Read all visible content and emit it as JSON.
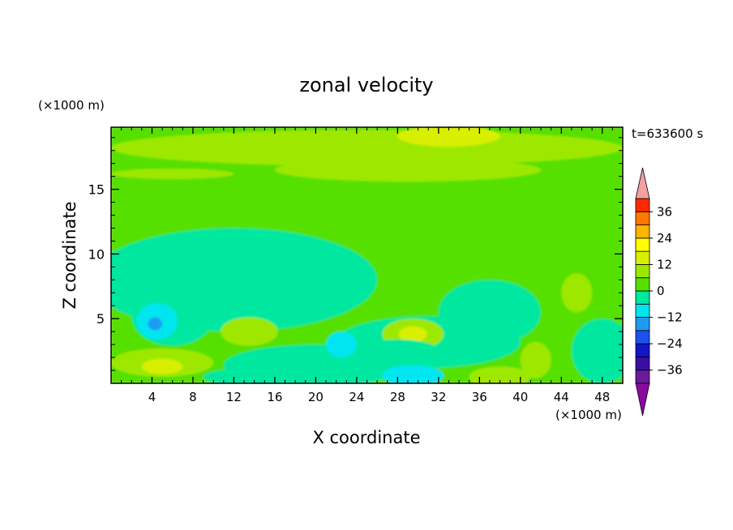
{
  "chart_data": {
    "type": "heatmap",
    "title": "zonal velocity",
    "time_label": "t=633600 s",
    "xlabel": "X coordinate",
    "ylabel": "Z coordinate",
    "x_unit": "(×1000 m)",
    "y_unit": "(×1000 m)",
    "xlim": [
      0,
      50
    ],
    "ylim": [
      0,
      19.8
    ],
    "xticks": [
      4,
      8,
      12,
      16,
      20,
      24,
      28,
      32,
      36,
      40,
      44,
      48
    ],
    "yticks": [
      5,
      10,
      15
    ],
    "colorbar": {
      "levels": [
        -42,
        -36,
        -30,
        -24,
        -18,
        -12,
        -6,
        0,
        6,
        12,
        18,
        24,
        30,
        36,
        42
      ],
      "tick_labels": [
        "36",
        "24",
        "12",
        "0",
        "−12",
        "−24",
        "−36"
      ],
      "tick_values": [
        36,
        24,
        12,
        0,
        -12,
        -24,
        -36
      ],
      "colors": [
        "#6a1b9a",
        "#3a0ea0",
        "#1414c8",
        "#1e50f0",
        "#1e9bf0",
        "#00e6f0",
        "#00e8a0",
        "#55e000",
        "#9ee800",
        "#d8f000",
        "#ffff00",
        "#ffb400",
        "#ff7800",
        "#ff2a00",
        "#dd0000"
      ],
      "under_color": "#8a0aa0",
      "over_color": "#f4a0a0"
    },
    "field_background": 2,
    "field_blobs": [
      {
        "x": 25,
        "y": 18.2,
        "rx": 25,
        "ry": 1.4,
        "v": 8
      },
      {
        "x": 33,
        "y": 19.1,
        "rx": 5,
        "ry": 0.8,
        "v": 14
      },
      {
        "x": 29,
        "y": 16.5,
        "rx": 13,
        "ry": 0.9,
        "v": 8
      },
      {
        "x": 6,
        "y": 16.2,
        "rx": 6,
        "ry": 0.4,
        "v": 8
      },
      {
        "x": 12,
        "y": 8,
        "rx": 14,
        "ry": 4,
        "v": -2
      },
      {
        "x": 31,
        "y": 3.2,
        "rx": 9,
        "ry": 2,
        "v": -2
      },
      {
        "x": 20,
        "y": 1.4,
        "rx": 9,
        "ry": 1.6,
        "v": -4
      },
      {
        "x": 6,
        "y": 5.2,
        "rx": 4,
        "ry": 2.3,
        "v": -4
      },
      {
        "x": 4.5,
        "y": 4.8,
        "rx": 2,
        "ry": 1.4,
        "v": -9
      },
      {
        "x": 4.3,
        "y": 4.6,
        "rx": 0.7,
        "ry": 0.5,
        "v": -14
      },
      {
        "x": 5,
        "y": 1.6,
        "rx": 5,
        "ry": 1.1,
        "v": 8
      },
      {
        "x": 5,
        "y": 1.3,
        "rx": 2,
        "ry": 0.6,
        "v": 13
      },
      {
        "x": 13.5,
        "y": 4,
        "rx": 2.8,
        "ry": 1.1,
        "v": 8
      },
      {
        "x": 29.5,
        "y": 3.8,
        "rx": 3,
        "ry": 1.2,
        "v": 8
      },
      {
        "x": 29.5,
        "y": 3.8,
        "rx": 1.4,
        "ry": 0.6,
        "v": 13
      },
      {
        "x": 45.5,
        "y": 7,
        "rx": 1.5,
        "ry": 1.5,
        "v": 8
      },
      {
        "x": 41.5,
        "y": 1.8,
        "rx": 1.5,
        "ry": 1.4,
        "v": 8
      },
      {
        "x": 29.5,
        "y": 0.6,
        "rx": 3,
        "ry": 0.8,
        "v": -9
      },
      {
        "x": 28,
        "y": 2.5,
        "rx": 4,
        "ry": 0.9,
        "v": -4
      },
      {
        "x": 14,
        "y": 0.5,
        "rx": 5,
        "ry": 0.7,
        "v": -4
      },
      {
        "x": 22.5,
        "y": 3,
        "rx": 1.5,
        "ry": 1,
        "v": -8
      },
      {
        "x": 37,
        "y": 5.5,
        "rx": 5,
        "ry": 2.5,
        "v": -4
      },
      {
        "x": 38,
        "y": 0.5,
        "rx": 3,
        "ry": 0.8,
        "v": 8
      },
      {
        "x": 48,
        "y": 2.5,
        "rx": 3,
        "ry": 2.5,
        "v": -4
      }
    ]
  }
}
